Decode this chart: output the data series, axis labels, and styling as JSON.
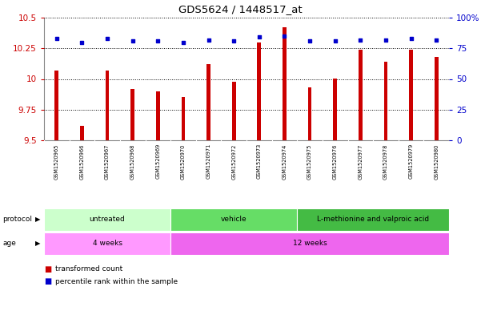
{
  "title": "GDS5624 / 1448517_at",
  "samples": [
    "GSM1520965",
    "GSM1520966",
    "GSM1520967",
    "GSM1520968",
    "GSM1520969",
    "GSM1520970",
    "GSM1520971",
    "GSM1520972",
    "GSM1520973",
    "GSM1520974",
    "GSM1520975",
    "GSM1520976",
    "GSM1520977",
    "GSM1520978",
    "GSM1520979",
    "GSM1520980"
  ],
  "transformed_count": [
    10.07,
    9.62,
    10.07,
    9.92,
    9.9,
    9.85,
    10.12,
    9.98,
    10.3,
    10.42,
    9.93,
    10.0,
    10.24,
    10.14,
    10.24,
    10.18
  ],
  "percentile_rank": [
    83,
    80,
    83,
    81,
    81,
    80,
    82,
    81,
    84,
    85,
    81,
    81,
    82,
    82,
    83,
    82
  ],
  "y_min": 9.5,
  "y_max": 10.5,
  "y_ticks": [
    9.5,
    9.75,
    10.0,
    10.25,
    10.5
  ],
  "right_y_ticks": [
    0,
    25,
    50,
    75,
    100
  ],
  "right_y_labels": [
    "0",
    "25",
    "50",
    "75",
    "100%"
  ],
  "protocol_groups": [
    {
      "label": "untreated",
      "start": 0,
      "end": 4,
      "color": "#CCFFCC"
    },
    {
      "label": "vehicle",
      "start": 5,
      "end": 9,
      "color": "#66DD66"
    },
    {
      "label": "L-methionine and valproic acid",
      "start": 10,
      "end": 15,
      "color": "#44BB44"
    }
  ],
  "age_groups": [
    {
      "label": "4 weeks",
      "start": 0,
      "end": 4,
      "color": "#FF99FF"
    },
    {
      "label": "12 weeks",
      "start": 5,
      "end": 15,
      "color": "#EE66EE"
    }
  ],
  "bar_color": "#CC0000",
  "dot_color": "#0000CC",
  "bar_width": 0.15,
  "left_label_color": "#CC0000",
  "right_label_color": "#0000CC",
  "grid_color": "black",
  "label_bg": "#CCCCCC"
}
